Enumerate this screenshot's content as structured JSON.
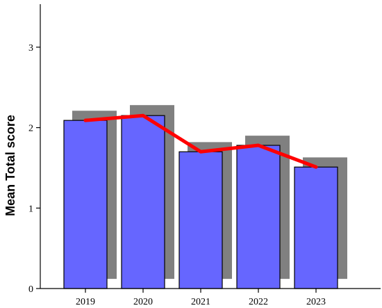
{
  "chart_data": {
    "type": "bar",
    "title": "",
    "xlabel": "",
    "ylabel": "Mean Total score",
    "ylim": [
      0,
      3.5
    ],
    "yticks": [
      0,
      1,
      2,
      3
    ],
    "grid": false,
    "legend": "none",
    "categories": [
      "2019",
      "2020",
      "2021",
      "2022",
      "2023"
    ],
    "series": [
      {
        "kind": "bar",
        "values": [
          2.09,
          2.15,
          1.7,
          1.78,
          1.51
        ],
        "color": "#6666ff"
      },
      {
        "kind": "shadow-bar",
        "values": [
          2.21,
          2.28,
          1.82,
          1.9,
          1.63
        ],
        "baseline": 0.12,
        "color": "#808080"
      },
      {
        "kind": "line",
        "values": [
          2.09,
          2.15,
          1.7,
          1.78,
          1.51
        ],
        "color": "#ff0000"
      }
    ]
  }
}
